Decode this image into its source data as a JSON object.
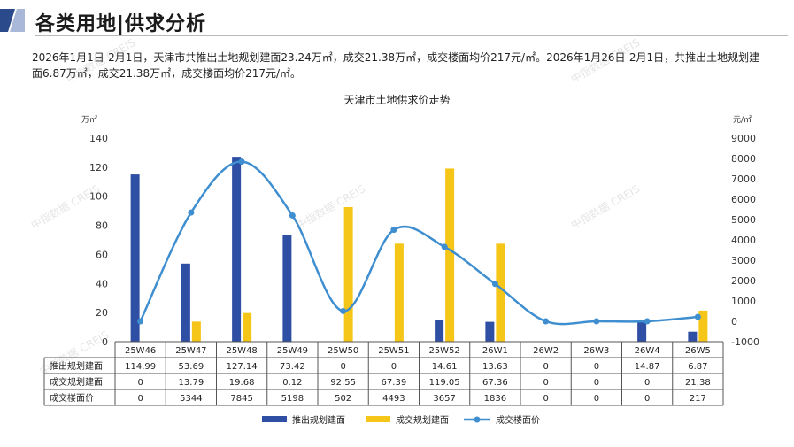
{
  "header": {
    "title": "各类用地|供求分析"
  },
  "intro": {
    "text": "2026年1月1日-2月1日，天津市共推出土地规划建面23.24万㎡，成交21.38万㎡，成交楼面均价217元/㎡。2026年1月26日-2月1日，共推出土地规划建面6.87万㎡，成交21.38万㎡，成交楼面均价217元/㎡。"
  },
  "watermark": "中指数据 CREIS",
  "colors": {
    "supply": "#2E4FA3",
    "deal": "#F5C518",
    "price": "#3E8ED0",
    "corner_dark": "#2A4A8C",
    "corner_light": "#A9B8D8"
  },
  "chart_data": {
    "type": "bar",
    "title": "天津市土地供求价走势",
    "categories": [
      "25W46",
      "25W47",
      "25W48",
      "25W49",
      "25W50",
      "25W51",
      "25W52",
      "26W1",
      "26W2",
      "26W3",
      "26W4",
      "26W5"
    ],
    "series": [
      {
        "name": "推出规划建面",
        "type": "bar",
        "axis": "left",
        "values": [
          114.99,
          53.69,
          127.14,
          73.42,
          0,
          0,
          14.61,
          13.63,
          0,
          0,
          14.87,
          6.87
        ]
      },
      {
        "name": "成交规划建面",
        "type": "bar",
        "axis": "left",
        "values": [
          0,
          13.79,
          19.68,
          0.12,
          92.55,
          67.39,
          119.05,
          67.36,
          0,
          0,
          0,
          21.38
        ]
      },
      {
        "name": "成交楼面价",
        "type": "line",
        "axis": "right",
        "values": [
          0,
          5344,
          7845,
          5198,
          502,
          4493,
          3657,
          1836,
          0,
          0,
          0,
          217
        ]
      }
    ],
    "table_rows": [
      {
        "label": "推出规划建面",
        "cells": [
          "114.99",
          "53.69",
          "127.14",
          "73.42",
          "0",
          "0",
          "14.61",
          "13.63",
          "0",
          "0",
          "14.87",
          "6.87"
        ]
      },
      {
        "label": "成交规划建面",
        "cells": [
          "0",
          "13.79",
          "19.68",
          "0.12",
          "92.55",
          "67.39",
          "119.05",
          "67.36",
          "0",
          "0",
          "0",
          "21.38"
        ]
      },
      {
        "label": "成交楼面价",
        "cells": [
          "0",
          "5344",
          "7845",
          "5198",
          "502",
          "4493",
          "3657",
          "1836",
          "0",
          "0",
          "0",
          "217"
        ]
      }
    ],
    "y_left": {
      "unit": "万㎡",
      "ylim": [
        0,
        140
      ],
      "ticks": [
        "0",
        "20",
        "40",
        "60",
        "80",
        "100",
        "120",
        "140"
      ]
    },
    "y_right": {
      "unit": "元/㎡",
      "ylim": [
        -1000,
        9000
      ],
      "ticks": [
        "-1000",
        "0",
        "1000",
        "2000",
        "3000",
        "4000",
        "5000",
        "6000",
        "7000",
        "8000",
        "9000"
      ]
    },
    "legend": {
      "position": "bottom",
      "items": [
        "推出规划建面",
        "成交规划建面",
        "成交楼面价"
      ]
    },
    "grid": false
  }
}
